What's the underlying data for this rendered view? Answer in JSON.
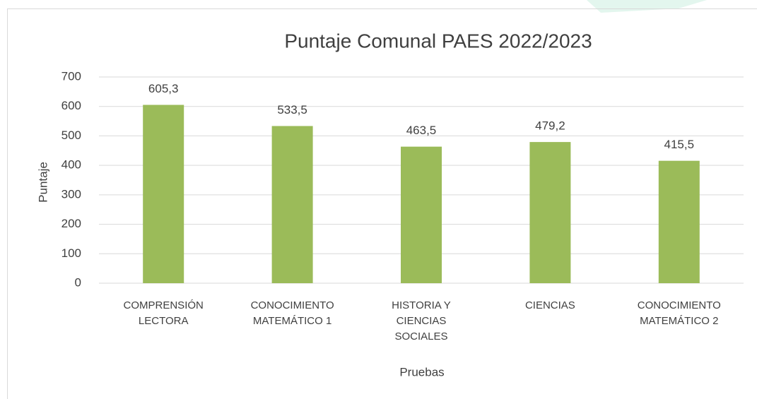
{
  "chart_data": {
    "type": "bar",
    "title": "Puntaje Comunal PAES 2022/2023",
    "x_label": "Pruebas",
    "y_label": "Puntaje",
    "categories": [
      "COMPRENSIÓN LECTORA",
      "CONOCIMIENTO MATEMÁTICO 1",
      "HISTORIA Y CIENCIAS SOCIALES",
      "CIENCIAS",
      "CONOCIMIENTO MATEMÁTICO 2"
    ],
    "values": [
      605.3,
      533.5,
      463.5,
      479.2,
      415.5
    ],
    "value_labels": [
      "605,3",
      "533,5",
      "463,5",
      "479,2",
      "415,5"
    ],
    "color": "#9bbb59",
    "ylim": [
      0,
      700
    ],
    "yticks": [
      0,
      100,
      200,
      300,
      400,
      500,
      600,
      700
    ],
    "grid": true
  }
}
